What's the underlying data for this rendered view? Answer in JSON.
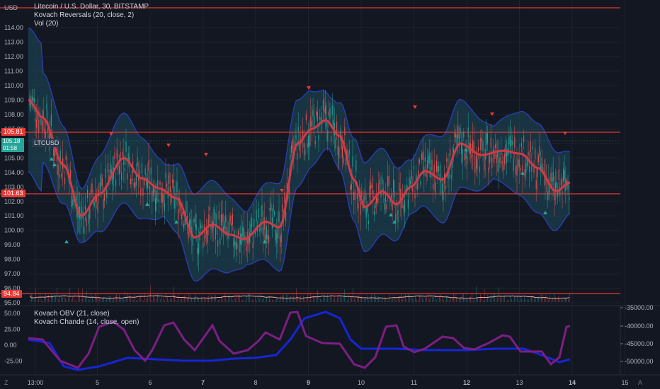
{
  "legend": {
    "symbol": "Litecoin / U.S. Dollar, 30, BITSTAMP",
    "indicator1": "Kovach Reversals (20, close, 2)",
    "indicator2": "Vol (20)",
    "indicator3": "Kovach OBV (21, close)",
    "indicator4": "Kovach Chande (14, close, open)"
  },
  "currency": "USD",
  "price_axis": [
    "114.00",
    "113.00",
    "112.00",
    "111.00",
    "110.00",
    "109.00",
    "108.00",
    "107.00",
    "106.00",
    "105.00",
    "104.00",
    "103.00",
    "102.00",
    "101.00",
    "100.00",
    "99.00",
    "98.00",
    "97.00",
    "96.00",
    "95.00"
  ],
  "level_tags": {
    "upper": "105.81",
    "lower": "101.63",
    "volume": "94.84"
  },
  "current_price": {
    "price": "105.18",
    "countdown": "01:58",
    "ticker": "LTCUSD"
  },
  "osc_left_axis": [
    "50.00",
    "25.00",
    "0.00",
    "-25.00"
  ],
  "osc_right_axis": [
    "-35000.00",
    "-40000.00",
    "-45000.00",
    "-50000.00"
  ],
  "time_axis": [
    "13:00",
    "5",
    "6",
    "7",
    "8",
    "9",
    "10",
    "11",
    "12",
    "13",
    "14",
    "15"
  ],
  "corner_left": "Z",
  "corner_right": "A",
  "colors": {
    "bg": "#131722",
    "red": "#e53935",
    "band": "#1e4d5c",
    "bandEdge": "#2a3fb8",
    "mid": "#d23a45",
    "blue": "#1526d6",
    "purple": "#7b1f83",
    "up": "#26a69a",
    "down": "#ef5350"
  }
}
